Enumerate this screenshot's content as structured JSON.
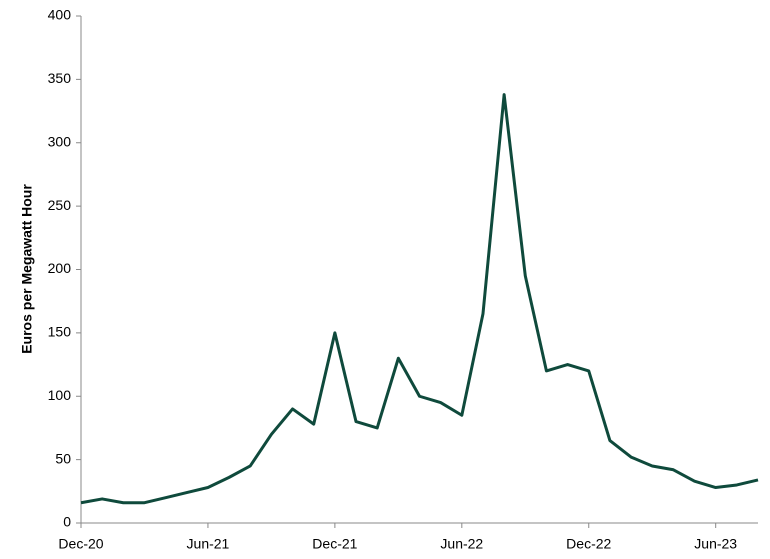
{
  "chart_data": {
    "type": "line",
    "y_label": "Euros per Megawatt Hour",
    "x": [
      "2020-12",
      "2021-01",
      "2021-02",
      "2021-03",
      "2021-04",
      "2021-05",
      "2021-06",
      "2021-07",
      "2021-08",
      "2021-09",
      "2021-10",
      "2021-11",
      "2021-12",
      "2022-01",
      "2022-02",
      "2022-03",
      "2022-04",
      "2022-05",
      "2022-06",
      "2022-07",
      "2022-08",
      "2022-09",
      "2022-10",
      "2022-11",
      "2022-12",
      "2023-01",
      "2023-02",
      "2023-03",
      "2023-04",
      "2023-05",
      "2023-06",
      "2023-07",
      "2023-08"
    ],
    "series": [
      {
        "color": "#0f4a3c",
        "values": [
          16,
          19,
          16,
          16,
          20,
          24,
          28,
          36,
          45,
          70,
          90,
          78,
          150,
          80,
          75,
          130,
          100,
          95,
          85,
          165,
          338,
          195,
          120,
          125,
          120,
          65,
          52,
          45,
          42,
          33,
          28,
          30,
          34
        ]
      }
    ],
    "xlim": [
      "2020-12",
      "2023-08"
    ],
    "xticks": [
      {
        "value": "2020-12",
        "label": "Dec-20"
      },
      {
        "value": "2021-06",
        "label": "Jun-21"
      },
      {
        "value": "2021-12",
        "label": "Dec-21"
      },
      {
        "value": "2022-06",
        "label": "Jun-22"
      },
      {
        "value": "2022-12",
        "label": "Dec-22"
      },
      {
        "value": "2023-06",
        "label": "Jun-23"
      }
    ],
    "ylim": [
      0,
      400
    ],
    "yticks": [
      0,
      50,
      100,
      150,
      200,
      250,
      300,
      350,
      400
    ],
    "grid": false
  }
}
